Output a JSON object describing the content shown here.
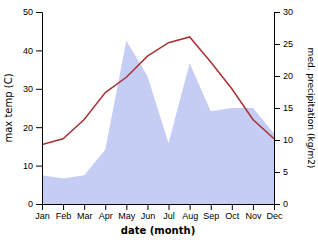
{
  "chart_data": {
    "type": "line",
    "categories": [
      "Jan",
      "Feb",
      "Mar",
      "Apr",
      "May",
      "Jun",
      "Jul",
      "Aug",
      "Sep",
      "Oct",
      "Nov",
      "Dec"
    ],
    "series": [
      {
        "type": "area",
        "axis": "y2",
        "color": "#c5cdf5",
        "values": [
          4.5,
          4.0,
          4.5,
          8.5,
          25.5,
          20.0,
          9.5,
          22.0,
          14.5,
          15.0,
          15.0,
          11.0
        ]
      },
      {
        "type": "line",
        "color": "#a83232",
        "values": [
          15.5,
          17.0,
          22.0,
          29.0,
          33.0,
          38.5,
          42.0,
          43.5,
          37.0,
          30.0,
          22.0,
          17.0
        ]
      }
    ],
    "xlabel": "date (month)",
    "ylabel": "max temp (C)",
    "y2label": "med. precipitation (kg/m2)",
    "ylim": [
      0,
      50
    ],
    "yticks": [
      0,
      10,
      20,
      30,
      40,
      50
    ],
    "y2lim": [
      0,
      30
    ],
    "y2ticks": [
      0,
      5,
      10,
      15,
      20,
      25,
      30
    ],
    "grid": false
  }
}
